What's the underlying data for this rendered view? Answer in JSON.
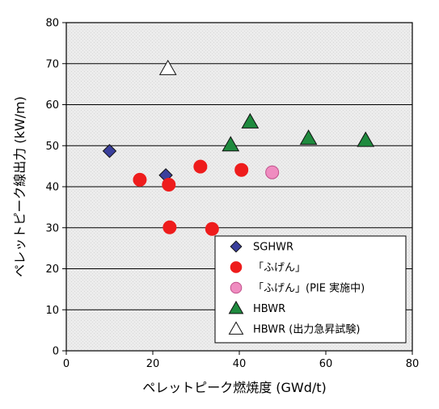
{
  "chart_data": {
    "type": "scatter",
    "xlabel": "ペレットピーク燃焼度 (GWd/t)",
    "ylabel": "ペレットピーク線出力 (kW/m)",
    "xlim": [
      0,
      80
    ],
    "ylim": [
      0,
      80
    ],
    "x_ticks": [
      "0",
      "20",
      "40",
      "60",
      "80"
    ],
    "y_ticks": [
      "0",
      "10",
      "20",
      "30",
      "40",
      "50",
      "60",
      "70",
      "80"
    ],
    "grid": "horizontal",
    "legend_position": "bottom-right",
    "series": [
      {
        "name": "SGHWR",
        "marker": "diamond",
        "color": "#3a3f9c",
        "points": [
          [
            10,
            48.7
          ],
          [
            23,
            42.8
          ]
        ]
      },
      {
        "name": "「ふげん」",
        "marker": "circle",
        "color": "#ee1c1c",
        "points": [
          [
            17,
            41.7
          ],
          [
            23.7,
            40.5
          ],
          [
            31,
            44.9
          ],
          [
            40.5,
            44.1
          ],
          [
            23.9,
            30.1
          ],
          [
            33.7,
            29.7
          ]
        ]
      },
      {
        "name": "「ふげん」(PIE 実施中)",
        "marker": "circle",
        "color": "#ef8cc0",
        "points": [
          [
            47.6,
            43.5
          ]
        ]
      },
      {
        "name": "HBWR",
        "marker": "triangle",
        "color": "#1f8a3e",
        "points": [
          [
            38,
            50.2
          ],
          [
            42.5,
            55.8
          ],
          [
            56,
            51.8
          ],
          [
            69.2,
            51.3
          ]
        ]
      },
      {
        "name": "HBWR (出力急昇試験)",
        "marker": "triangle-open",
        "color": "#ffffff",
        "points": [
          [
            23.5,
            68.8
          ]
        ]
      }
    ]
  }
}
